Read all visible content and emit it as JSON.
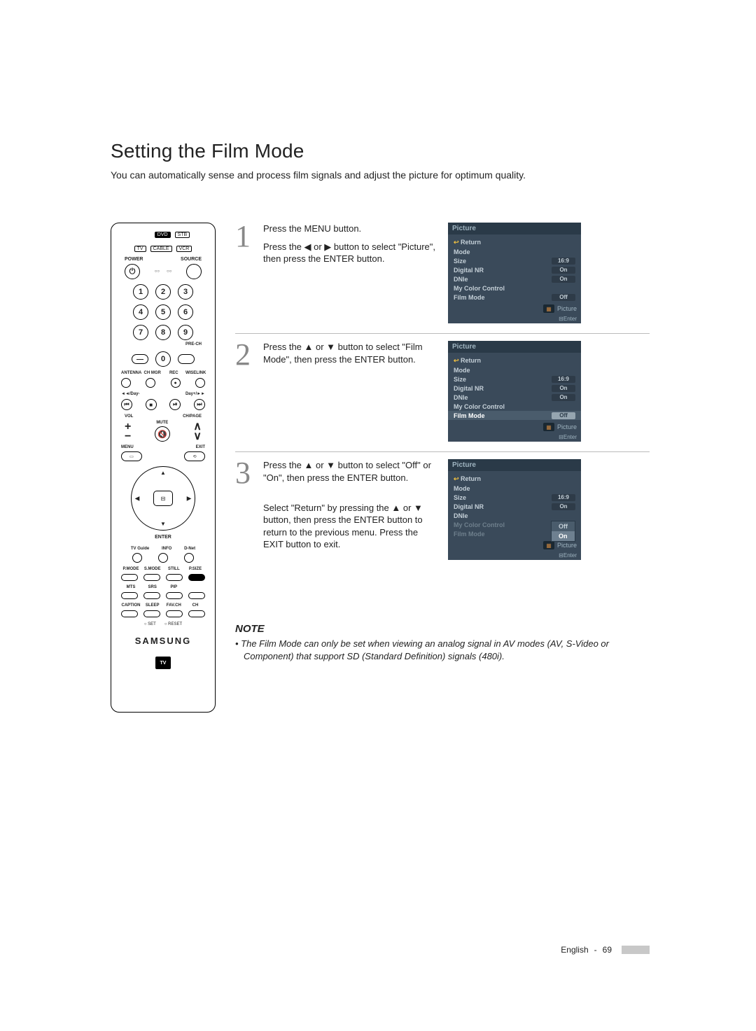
{
  "title": "Setting the Film Mode",
  "subtitle": "You can automatically sense and process film signals and adjust the picture for optimum quality.",
  "remote": {
    "src_top": [
      "DVD",
      "STB"
    ],
    "src_bot": [
      "TV",
      "CABLE",
      "VCR"
    ],
    "power": "POWER",
    "source": "SOURCE",
    "nums": [
      [
        "1",
        "2",
        "3"
      ],
      [
        "4",
        "5",
        "6"
      ],
      [
        "7",
        "8",
        "9"
      ]
    ],
    "zero": "0",
    "dash": "—",
    "prech": "PRE-CH",
    "row_labels_1": [
      "ANTENNA",
      "CH MGR",
      "REC",
      "WISELINK"
    ],
    "day_minus": "◄◄/Day-",
    "day_plus": "Day+/►►",
    "vol": "VOL",
    "chpage": "CH/PAGE",
    "mute": "MUTE",
    "menu": "MENU",
    "exit": "EXIT",
    "enter": "ENTER",
    "row_labels_2": [
      "TV Guide",
      "INFO",
      "D-Net"
    ],
    "row_labels_3": [
      "P.MODE",
      "S.MODE",
      "STILL",
      "P.SIZE"
    ],
    "row_labels_4": [
      "MTS",
      "SRS",
      "PIP",
      ""
    ],
    "row_labels_5": [
      "CAPTION",
      "SLEEP",
      "FAV.CH",
      "CH"
    ],
    "set_reset": [
      "○ SET",
      "○ RESET"
    ],
    "brand": "SAMSUNG",
    "tvguide": "TV"
  },
  "steps": [
    {
      "num": "1",
      "text": "Press the MENU button.\nPress the ◀ or ▶ button to select \"Picture\", then press  the ENTER button.",
      "osd": {
        "title": "Picture",
        "rows": [
          {
            "label": "Return",
            "ret": true
          },
          {
            "label": "Mode"
          },
          {
            "label": "Size",
            "val": "16:9"
          },
          {
            "label": "Digital NR",
            "val": "On"
          },
          {
            "label": "DNIe",
            "val": "On"
          },
          {
            "label": "My Color Control"
          },
          {
            "label": "Film Mode",
            "val": "Off"
          }
        ],
        "highlight_index": -1,
        "picture_tag": "Picture",
        "enter": "Enter"
      }
    },
    {
      "num": "2",
      "text": "Press the ▲ or ▼ button to select \"Film Mode\", then press the ENTER button.",
      "osd": {
        "title": "Picture",
        "rows": [
          {
            "label": "Return",
            "ret": true
          },
          {
            "label": "Mode"
          },
          {
            "label": "Size",
            "val": "16:9"
          },
          {
            "label": "Digital NR",
            "val": "On"
          },
          {
            "label": "DNIe",
            "val": "On"
          },
          {
            "label": "My Color Control"
          },
          {
            "label": "Film Mode",
            "val": "Off"
          }
        ],
        "highlight_index": 6,
        "picture_tag": "Picture",
        "enter": "Enter"
      }
    },
    {
      "num": "3",
      "text": "Press the ▲ or ▼ button to select \"Off\" or \"On\", then press the ENTER button.\n\nSelect \"Return\" by pressing the ▲ or ▼ button, then press the ENTER button to return to the previous menu. Press the EXIT button to exit.",
      "osd": {
        "title": "Picture",
        "rows": [
          {
            "label": "Return",
            "ret": true
          },
          {
            "label": "Mode"
          },
          {
            "label": "Size",
            "val": "16:9"
          },
          {
            "label": "Digital NR",
            "val": "On"
          },
          {
            "label": "DNIe"
          },
          {
            "label": "My Color Control",
            "dim": true
          },
          {
            "label": "Film Mode",
            "dim": true
          }
        ],
        "highlight_index": -1,
        "popup": {
          "options": [
            "Off",
            "On"
          ],
          "selected": 1
        },
        "picture_tag": "Picture",
        "enter": "Enter"
      }
    }
  ],
  "note": {
    "title": "NOTE",
    "text": "• The Film Mode can only be set when viewing an analog signal in AV modes (AV, S-Video or Component) that support SD (Standard Definition) signals (480i)."
  },
  "footer": {
    "lang": "English",
    "page": "69"
  },
  "colors": {
    "osd_bg": "#3a4a5a",
    "osd_header": "#2a3a48",
    "osd_text": "#c5d0d8",
    "osd_hl": "#4a5c6c",
    "stepnum": "#888888"
  }
}
